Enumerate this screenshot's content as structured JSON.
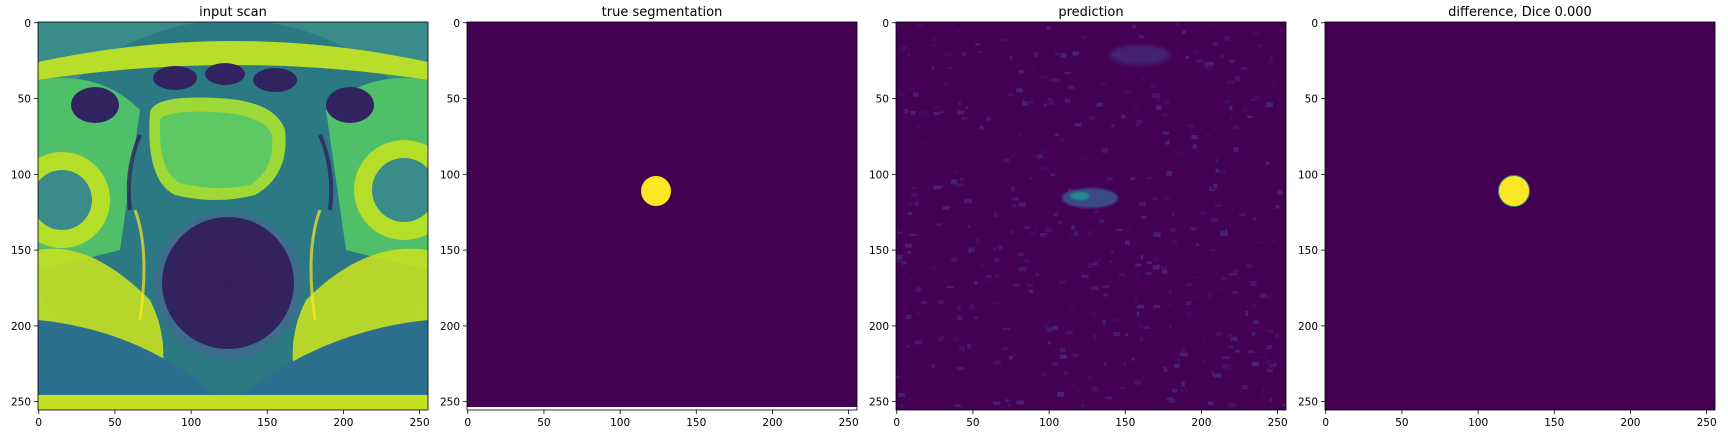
{
  "figure": {
    "panels": [
      {
        "id": "input",
        "title": "input scan",
        "kind": "mri",
        "x_ticks": [
          "0",
          "50",
          "100",
          "150",
          "200",
          "250"
        ],
        "y_ticks": [
          "0",
          "50",
          "100",
          "150",
          "200",
          "250"
        ]
      },
      {
        "id": "truth",
        "title": "true segmentation",
        "kind": "mask",
        "x_ticks": [
          "0",
          "50",
          "100",
          "150",
          "200",
          "250"
        ],
        "y_ticks": [
          "0",
          "50",
          "100",
          "150",
          "200",
          "250"
        ]
      },
      {
        "id": "prediction",
        "title": "prediction",
        "kind": "noise",
        "x_ticks": [
          "0",
          "50",
          "100",
          "150",
          "200",
          "250"
        ],
        "y_ticks": [
          "0",
          "50",
          "100",
          "150",
          "200",
          "250"
        ]
      },
      {
        "id": "difference",
        "title": "difference, Dice 0.000",
        "kind": "mask",
        "x_ticks": [
          "0",
          "50",
          "100",
          "150",
          "200",
          "250"
        ],
        "y_ticks": [
          "0",
          "50",
          "100",
          "150",
          "200",
          "250"
        ]
      }
    ],
    "image_size": 256,
    "colors": {
      "viridis_low": "#440154",
      "viridis_high": "#fde725",
      "viridis_mid": "#21918c",
      "viridis_green": "#5ec962"
    },
    "blob": {
      "cx": 124,
      "cy": 111,
      "r": 10
    }
  }
}
